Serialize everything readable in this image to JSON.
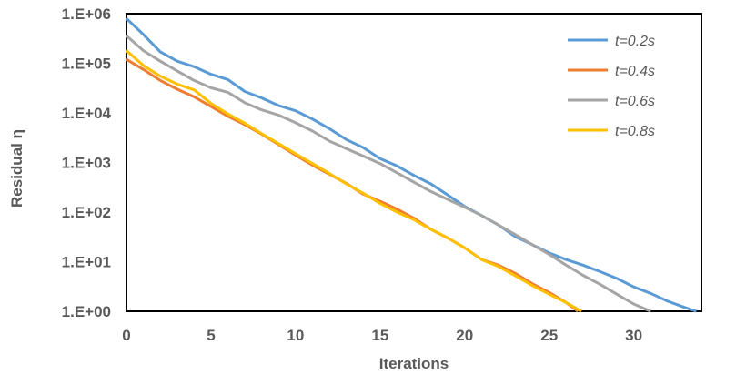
{
  "chart_data": {
    "type": "line",
    "xlabel": "Iterations",
    "ylabel": "Residual η",
    "xlim": [
      0,
      34
    ],
    "ylim": [
      1,
      1000000
    ],
    "yscale": "log",
    "xticks": [
      0,
      5,
      10,
      15,
      20,
      25,
      30
    ],
    "xtick_labels": [
      "0",
      "5",
      "10",
      "15",
      "20",
      "25",
      "30"
    ],
    "yticks": [
      1,
      10,
      100,
      1000,
      10000,
      100000,
      1000000
    ],
    "ytick_labels": [
      "1.E+00",
      "1.E+01",
      "1.E+02",
      "1.E+03",
      "1.E+04",
      "1.E+05",
      "1.E+06"
    ],
    "grid": false,
    "legend_position": "top-right",
    "series": [
      {
        "name": "t=0.2s",
        "color": "#5B9BD5",
        "x": [
          0,
          1,
          2,
          3,
          4,
          5,
          6,
          7,
          8,
          9,
          10,
          11,
          12,
          13,
          14,
          15,
          16,
          17,
          18,
          19,
          20,
          21,
          22,
          23,
          24,
          25,
          26,
          27,
          28,
          29,
          30,
          31,
          32,
          33,
          33.7
        ],
        "y": [
          800000,
          380000,
          170000,
          110000,
          85000,
          60000,
          47000,
          27000,
          20000,
          14000,
          11000,
          7500,
          4800,
          2900,
          2000,
          1200,
          850,
          550,
          370,
          220,
          130,
          85,
          55,
          32,
          22,
          15,
          11,
          8.5,
          6.3,
          4.6,
          3.1,
          2.3,
          1.6,
          1.2,
          1
        ]
      },
      {
        "name": "t=0.4s",
        "color": "#ED7D31",
        "x": [
          0,
          1,
          2,
          3,
          4,
          5,
          6,
          7,
          8,
          9,
          10,
          11,
          12,
          13,
          14,
          15,
          16,
          17,
          18,
          19,
          20,
          21,
          22,
          23,
          24,
          25,
          26,
          26.7
        ],
        "y": [
          120000,
          75000,
          45000,
          30000,
          21000,
          13500,
          8500,
          5800,
          3700,
          2300,
          1400,
          880,
          580,
          380,
          230,
          165,
          115,
          75,
          45,
          30,
          19,
          11,
          8.5,
          5.8,
          3.6,
          2.4,
          1.5,
          1
        ]
      },
      {
        "name": "t=0.6s",
        "color": "#A5A5A5",
        "x": [
          0,
          1,
          2,
          3,
          4,
          5,
          6,
          7,
          8,
          9,
          10,
          11,
          12,
          13,
          14,
          15,
          16,
          17,
          18,
          19,
          20,
          21,
          22,
          23,
          24,
          25,
          26,
          27,
          28,
          29,
          30,
          31
        ],
        "y": [
          360000,
          180000,
          110000,
          70000,
          45000,
          32000,
          26000,
          16000,
          11500,
          9000,
          6300,
          4300,
          2700,
          1900,
          1350,
          950,
          620,
          400,
          260,
          180,
          125,
          85,
          55,
          35,
          22,
          14,
          8.5,
          5.3,
          3.5,
          2.2,
          1.4,
          1
        ]
      },
      {
        "name": "t=0.8s",
        "color": "#FFC000",
        "x": [
          0,
          1,
          2,
          3,
          4,
          5,
          6,
          7,
          8,
          9,
          10,
          11,
          12,
          13,
          14,
          15,
          16,
          17,
          18,
          19,
          20,
          21,
          22,
          23,
          24,
          25,
          26,
          26.9
        ],
        "y": [
          180000,
          90000,
          55000,
          38000,
          29000,
          15500,
          9500,
          6200,
          3800,
          2400,
          1500,
          950,
          600,
          370,
          240,
          150,
          100,
          70,
          45,
          30,
          19,
          11,
          8,
          5.2,
          3.3,
          2.2,
          1.5,
          1
        ]
      }
    ]
  }
}
